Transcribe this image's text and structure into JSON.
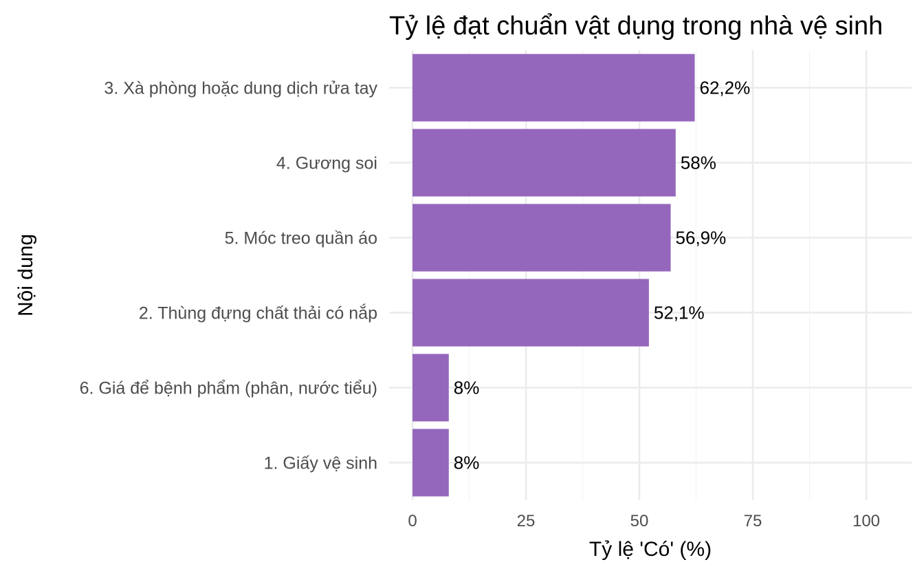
{
  "chart_data": {
    "type": "bar",
    "orientation": "horizontal",
    "title": "Tỷ lệ đạt chuẩn vật dụng trong nhà vệ sinh",
    "xlabel": "Tỷ lệ 'Có' (%)",
    "ylabel": "Nội dung",
    "xlim": [
      0,
      110
    ],
    "xticks": [
      0,
      25,
      50,
      75,
      100
    ],
    "categories": [
      "3. Xà phòng hoặc dung dịch rửa tay",
      "4. Gương soi",
      "5. Móc treo quần áo",
      "2. Thùng đựng chất thải có nắp",
      "6. Giá để bệnh phẩm (phân, nước tiểu)",
      "1. Giấy vệ sinh"
    ],
    "values": [
      62.2,
      58,
      56.9,
      52.1,
      8,
      8
    ],
    "data_labels": [
      "62,2%",
      "58%",
      "56,9%",
      "52,1%",
      "8%",
      "8%"
    ],
    "bar_color": "#9467bd",
    "grid": true,
    "legend": "none"
  }
}
